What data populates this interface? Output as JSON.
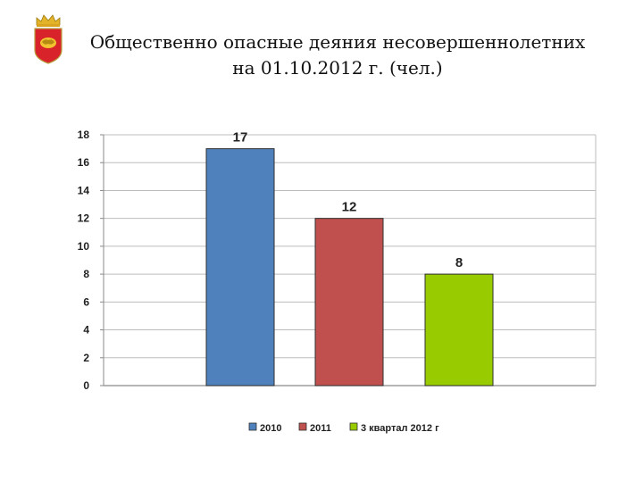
{
  "header": {
    "title_line1": "Общественно опасные деяния несовершеннолетних",
    "title_line2": "на 01.10.2012 г. (чел.)",
    "emblem_icon": "coat-of-arms-icon"
  },
  "chart_data": {
    "type": "bar",
    "categories": [
      "2010",
      "2011",
      "3 квартал 2012 г"
    ],
    "values": [
      17,
      12,
      8
    ],
    "colors": [
      "#4f81bd",
      "#c0504d",
      "#99cc00"
    ],
    "ylim": [
      0,
      18
    ],
    "yticks": [
      0,
      2,
      4,
      6,
      8,
      10,
      12,
      14,
      16,
      18
    ],
    "grid": true,
    "legend": "bottom",
    "title": "",
    "xlabel": "",
    "ylabel": ""
  }
}
